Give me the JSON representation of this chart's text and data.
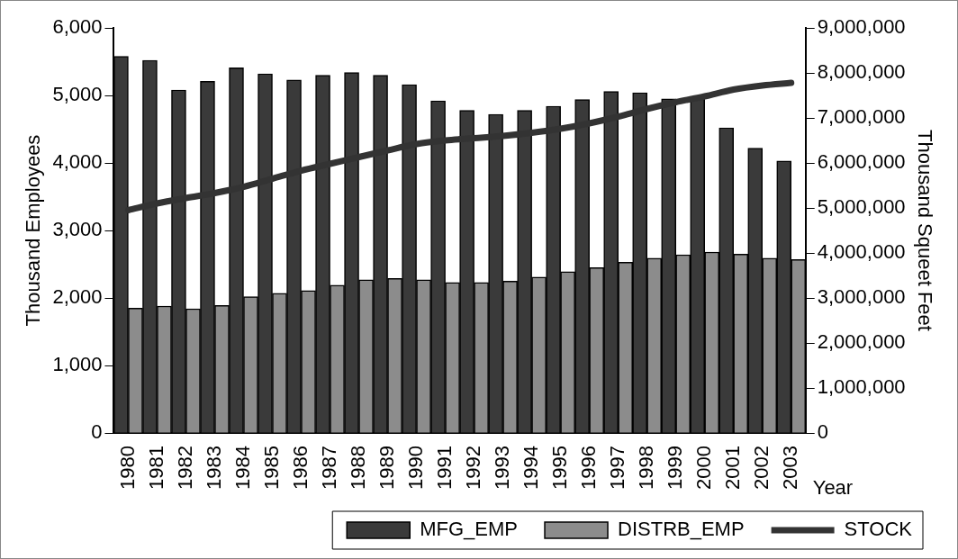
{
  "chart_data": {
    "type": "bar",
    "categories": [
      "1980",
      "1981",
      "1982",
      "1983",
      "1984",
      "1985",
      "1986",
      "1987",
      "1988",
      "1989",
      "1990",
      "1991",
      "1992",
      "1993",
      "1994",
      "1995",
      "1996",
      "1997",
      "1998",
      "1999",
      "2000",
      "2001",
      "2002",
      "2003"
    ],
    "series": [
      {
        "name": "MFG_EMP",
        "color": "#3a3a3a",
        "values": [
          5580,
          5520,
          5080,
          5210,
          5410,
          5320,
          5230,
          5300,
          5340,
          5300,
          5160,
          4920,
          4780,
          4720,
          4780,
          4840,
          4940,
          5060,
          5040,
          4950,
          4950,
          4520,
          4220,
          4030
        ]
      },
      {
        "name": "DISTRB_EMP",
        "color": "#8c8c8c",
        "values": [
          1850,
          1880,
          1840,
          1890,
          2020,
          2070,
          2110,
          2190,
          2270,
          2290,
          2270,
          2230,
          2230,
          2250,
          2310,
          2390,
          2450,
          2530,
          2590,
          2640,
          2680,
          2650,
          2590,
          2570
        ]
      },
      {
        "name": "STOCK",
        "type": "line",
        "axis": "y2",
        "color": "#333333",
        "values": [
          4950000,
          5100000,
          5220000,
          5330000,
          5470000,
          5650000,
          5830000,
          5980000,
          6130000,
          6280000,
          6420000,
          6500000,
          6550000,
          6600000,
          6670000,
          6760000,
          6880000,
          7030000,
          7200000,
          7350000,
          7480000,
          7630000,
          7720000,
          7780000
        ]
      }
    ],
    "xlabel": "Year",
    "ylabel": "Thousand Employees",
    "y2label": "Thousand Squeet Feet",
    "ylim": [
      0,
      6000
    ],
    "yticks": [
      0,
      {
        "value": 1000,
        "label": "1,000"
      },
      {
        "value": 2000,
        "label": "2,000"
      },
      {
        "value": 3000,
        "label": "3,000"
      },
      {
        "value": 4000,
        "label": "4,000"
      },
      {
        "value": 5000,
        "label": "5,000"
      },
      {
        "value": 6000,
        "label": "6,000"
      }
    ],
    "y2lim": [
      0,
      9000000
    ],
    "y2ticks": [
      0,
      {
        "value": 1000000,
        "label": "1,000,000"
      },
      {
        "value": 2000000,
        "label": "2,000,000"
      },
      {
        "value": 3000000,
        "label": "3,000,000"
      },
      {
        "value": 4000000,
        "label": "4,000,000"
      },
      {
        "value": 5000000,
        "label": "5,000,000"
      },
      {
        "value": 6000000,
        "label": "6,000,000"
      },
      {
        "value": 7000000,
        "label": "7,000,000"
      },
      {
        "value": 8000000,
        "label": "8,000,000"
      },
      {
        "value": 9000000,
        "label": "9,000,000"
      }
    ],
    "grid": false,
    "legend": "bottom right",
    "marker": "none",
    "line_style": "solid"
  }
}
